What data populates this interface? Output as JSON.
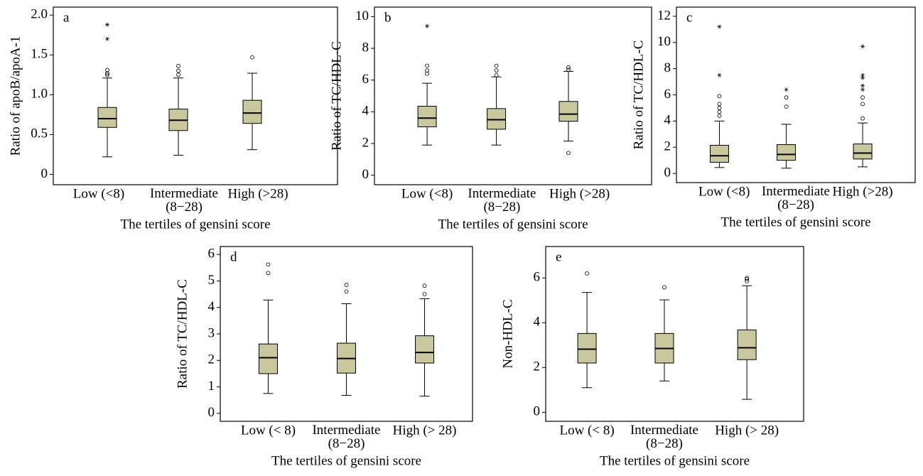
{
  "chart_data": [
    {
      "type": "box",
      "label": "a",
      "ylabel": "Ratio of apoB/apoA-1",
      "xlabel": "The tertiles of gensini score",
      "color": "#c9c79e",
      "categories": [
        "Low (<8)",
        "Intermediate\n(8−28)",
        "High (>28)"
      ],
      "ylim": [
        -0.13,
        2.1
      ],
      "yticks": [
        0,
        0.5,
        {
          "value": 1,
          "label": "1.0"
        },
        1.5,
        {
          "value": 2,
          "label": "2.0"
        }
      ],
      "boxes": [
        {
          "whislo": 0.22,
          "q1": 0.59,
          "med": 0.7,
          "q3": 0.84,
          "whishi": 1.21,
          "outliers": [
            1.25,
            1.27,
            1.31
          ],
          "extremes": [
            1.7,
            1.88
          ]
        },
        {
          "whislo": 0.24,
          "q1": 0.55,
          "med": 0.68,
          "q3": 0.82,
          "whishi": 1.21,
          "outliers": [
            1.25,
            1.3,
            1.36
          ],
          "extremes": []
        },
        {
          "whislo": 0.31,
          "q1": 0.64,
          "med": 0.77,
          "q3": 0.93,
          "whishi": 1.27,
          "outliers": [
            1.47
          ],
          "extremes": []
        }
      ]
    },
    {
      "type": "box",
      "label": "b",
      "ylabel": "Ratio of TC/HDL-C",
      "xlabel": "The tertiles of gensini score",
      "color": "#c9c79e",
      "categories": [
        "Low (<8)",
        "Intermediate\n(8−28)",
        "High (>28)"
      ],
      "ylim": [
        -0.6,
        10.6
      ],
      "yticks": [
        0,
        2,
        4,
        6,
        8,
        10
      ],
      "boxes": [
        {
          "whislo": 1.9,
          "q1": 3.05,
          "med": 3.6,
          "q3": 4.35,
          "whishi": 5.8,
          "outliers": [
            6.4,
            6.6,
            6.9
          ],
          "extremes": [
            9.4
          ]
        },
        {
          "whislo": 1.9,
          "q1": 2.9,
          "med": 3.5,
          "q3": 4.2,
          "whishi": 6.2,
          "outliers": [
            6.3,
            6.6,
            6.9
          ],
          "extremes": []
        },
        {
          "whislo": 2.15,
          "q1": 3.4,
          "med": 3.85,
          "q3": 4.65,
          "whishi": 6.55,
          "outliers": [
            1.4,
            6.65,
            6.8
          ],
          "extremes": []
        }
      ]
    },
    {
      "type": "box",
      "label": "c",
      "ylabel": "Ratio of TC/HDL-C",
      "xlabel": "The tertiles of gensini score",
      "color": "#c9c79e",
      "categories": [
        "Low (<8)",
        "Intermediate\n(8−28)",
        "High (>28)"
      ],
      "ylim": [
        -0.7,
        12.7
      ],
      "yticks": [
        0,
        2,
        4,
        6,
        8,
        10,
        12
      ],
      "boxes": [
        {
          "whislo": 0.45,
          "q1": 0.85,
          "med": 1.35,
          "q3": 2.15,
          "whishi": 4.0,
          "outliers": [
            4.4,
            4.7,
            5.0,
            5.3,
            5.9
          ],
          "extremes": [
            7.5,
            11.2
          ]
        },
        {
          "whislo": 0.4,
          "q1": 1.0,
          "med": 1.45,
          "q3": 2.2,
          "whishi": 3.75,
          "outliers": [
            5.1,
            5.8
          ],
          "extremes": [
            6.4
          ]
        },
        {
          "whislo": 0.5,
          "q1": 1.1,
          "med": 1.55,
          "q3": 2.25,
          "whishi": 3.85,
          "outliers": [
            4.2,
            5.3,
            5.8
          ],
          "extremes": [
            6.4,
            6.7,
            7.3,
            7.5,
            9.7
          ]
        }
      ]
    },
    {
      "type": "box",
      "label": "d",
      "ylabel": "Ratio of TC/HDL-C",
      "xlabel": "The tertiles of gensini score",
      "color": "#c9c79e",
      "categories": [
        "Low (< 8)",
        "Intermediate\n(8−28)",
        "High (> 28)"
      ],
      "ylim": [
        -0.3,
        6.3
      ],
      "yticks": [
        0,
        1,
        2,
        3,
        4,
        5,
        6
      ],
      "boxes": [
        {
          "whislo": 0.75,
          "q1": 1.5,
          "med": 2.1,
          "q3": 2.62,
          "whishi": 4.28,
          "outliers": [
            5.3,
            5.62
          ],
          "extremes": []
        },
        {
          "whislo": 0.68,
          "q1": 1.52,
          "med": 2.07,
          "q3": 2.65,
          "whishi": 4.14,
          "outliers": [
            4.6,
            4.85
          ],
          "extremes": []
        },
        {
          "whislo": 0.65,
          "q1": 1.9,
          "med": 2.3,
          "q3": 2.93,
          "whishi": 4.33,
          "outliers": [
            4.5,
            4.82
          ],
          "extremes": []
        }
      ]
    },
    {
      "type": "box",
      "label": "e",
      "ylabel": "Non-HDL-C",
      "xlabel": "The tertiles of gensini score",
      "color": "#c9c79e",
      "categories": [
        "Low (< 8)",
        "Intermediate\n(8−28)",
        "High (> 28)"
      ],
      "ylim": [
        -0.4,
        7.4
      ],
      "yticks": [
        0,
        2,
        4,
        6
      ],
      "boxes": [
        {
          "whislo": 1.1,
          "q1": 2.2,
          "med": 2.82,
          "q3": 3.52,
          "whishi": 5.35,
          "outliers": [
            6.2
          ],
          "extremes": []
        },
        {
          "whislo": 1.4,
          "q1": 2.2,
          "med": 2.85,
          "q3": 3.52,
          "whishi": 5.02,
          "outliers": [
            5.58
          ],
          "extremes": []
        },
        {
          "whislo": 0.58,
          "q1": 2.35,
          "med": 2.88,
          "q3": 3.68,
          "whishi": 5.65,
          "outliers": [
            5.85,
            5.95,
            6.0
          ],
          "extremes": []
        }
      ]
    }
  ]
}
